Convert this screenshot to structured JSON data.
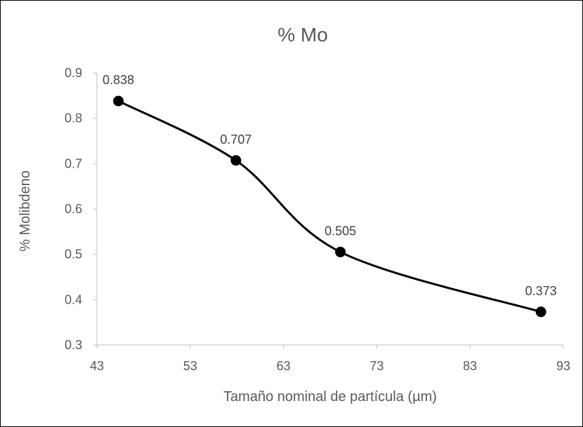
{
  "chart_data": {
    "type": "line",
    "title": "% Mo",
    "xlabel": "Tamaño nominal de partícula (µm)",
    "ylabel": "% Molibdeno",
    "xlim": [
      43,
      93
    ],
    "ylim": [
      0.3,
      0.9
    ],
    "x_ticks": [
      "43",
      "53",
      "63",
      "73",
      "83",
      "93"
    ],
    "y_ticks": [
      "0.3",
      "0.4",
      "0.5",
      "0.6",
      "0.7",
      "0.8",
      "0.9"
    ],
    "grid": false,
    "smoothed": true,
    "series": [
      {
        "x": [
          45.3,
          57.9,
          69.1,
          90.6
        ],
        "y": [
          0.838,
          0.707,
          0.505,
          0.373
        ],
        "data_labels": [
          "0.838",
          "0.707",
          "0.505",
          "0.373"
        ],
        "color": "#000000"
      }
    ]
  }
}
